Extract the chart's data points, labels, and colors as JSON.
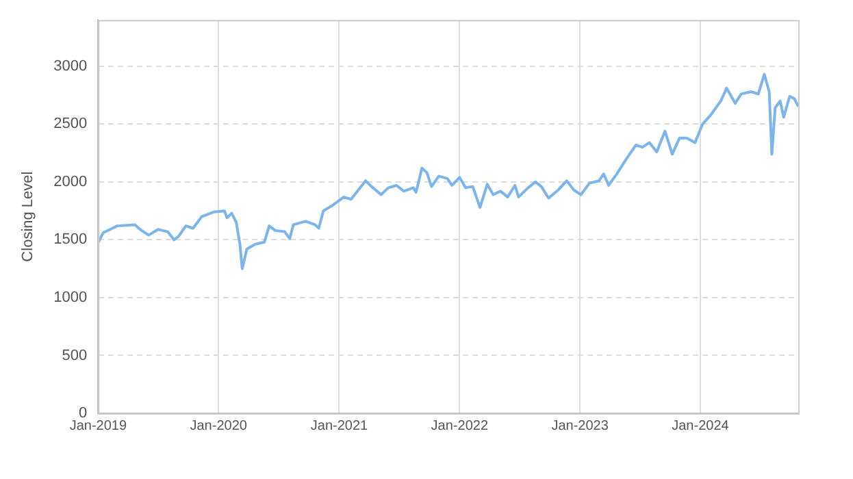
{
  "chart_data": {
    "type": "line",
    "ylabel": "Closing Level",
    "xlim": [
      "2019-01-01",
      "2024-10-24"
    ],
    "xticks": [
      {
        "value": "2019-01-01",
        "label": "Jan-2019"
      },
      {
        "value": "2020-01-01",
        "label": "Jan-2020"
      },
      {
        "value": "2021-01-01",
        "label": "Jan-2021"
      },
      {
        "value": "2022-01-01",
        "label": "Jan-2022"
      },
      {
        "value": "2023-01-01",
        "label": "Jan-2023"
      },
      {
        "value": "2024-01-01",
        "label": "Jan-2024"
      }
    ],
    "ylim": [
      0,
      3400
    ],
    "yticks": [
      0,
      500,
      1000,
      1500,
      2000,
      2500,
      3000
    ],
    "grid": true,
    "legend": false,
    "marker": "none",
    "line_style": "solid",
    "x": [
      "2019-01-02",
      "2019-01-16",
      "2019-02-28",
      "2019-04-23",
      "2019-05-08",
      "2019-06-03",
      "2019-07-02",
      "2019-07-31",
      "2019-08-19",
      "2019-09-02",
      "2019-09-24",
      "2019-10-16",
      "2019-11-11",
      "2019-12-17",
      "2020-01-19",
      "2020-01-27",
      "2020-02-10",
      "2020-02-24",
      "2020-03-06",
      "2020-03-13",
      "2020-03-27",
      "2020-04-20",
      "2020-05-19",
      "2020-06-03",
      "2020-06-21",
      "2020-07-20",
      "2020-08-04",
      "2020-08-15",
      "2020-09-21",
      "2020-10-20",
      "2020-10-31",
      "2020-11-14",
      "2020-12-13",
      "2021-01-15",
      "2021-02-06",
      "2021-02-28",
      "2021-03-22",
      "2021-04-09",
      "2021-05-08",
      "2021-05-30",
      "2021-06-24",
      "2021-07-16",
      "2021-08-14",
      "2021-08-22",
      "2021-09-09",
      "2021-09-24",
      "2021-10-08",
      "2021-10-30",
      "2021-11-25",
      "2021-12-09",
      "2022-01-01",
      "2022-01-19",
      "2022-02-10",
      "2022-03-04",
      "2022-03-26",
      "2022-04-13",
      "2022-05-05",
      "2022-05-27",
      "2022-06-18",
      "2022-06-29",
      "2022-07-28",
      "2022-08-19",
      "2022-09-06",
      "2022-09-28",
      "2022-10-27",
      "2022-11-22",
      "2022-12-14",
      "2023-01-04",
      "2023-01-30",
      "2023-02-28",
      "2023-03-14",
      "2023-03-29",
      "2023-04-23",
      "2023-05-22",
      "2023-06-20",
      "2023-07-09",
      "2023-07-31",
      "2023-08-22",
      "2023-09-16",
      "2023-10-08",
      "2023-10-30",
      "2023-11-21",
      "2023-12-16",
      "2024-01-08",
      "2024-02-02",
      "2024-03-03",
      "2024-03-21",
      "2024-04-16",
      "2024-05-04",
      "2024-06-03",
      "2024-06-25",
      "2024-07-13",
      "2024-07-28",
      "2024-08-05",
      "2024-08-15",
      "2024-08-30",
      "2024-09-10",
      "2024-09-28",
      "2024-10-12",
      "2024-10-23"
    ],
    "series": [
      {
        "color": "#7cb5ec",
        "values": [
          1480,
          1560,
          1620,
          1630,
          1590,
          1540,
          1590,
          1570,
          1500,
          1530,
          1620,
          1600,
          1700,
          1740,
          1750,
          1690,
          1730,
          1650,
          1460,
          1250,
          1420,
          1460,
          1480,
          1620,
          1580,
          1570,
          1510,
          1630,
          1660,
          1630,
          1600,
          1750,
          1800,
          1870,
          1850,
          1930,
          2010,
          1960,
          1890,
          1950,
          1970,
          1920,
          1950,
          1910,
          2120,
          2080,
          1960,
          2050,
          2030,
          1970,
          2040,
          1950,
          1960,
          1780,
          1980,
          1890,
          1920,
          1870,
          1970,
          1870,
          1950,
          2000,
          1960,
          1860,
          1930,
          2010,
          1930,
          1890,
          1990,
          2010,
          2070,
          1970,
          2070,
          2200,
          2320,
          2300,
          2340,
          2260,
          2440,
          2240,
          2380,
          2380,
          2340,
          2500,
          2580,
          2700,
          2810,
          2680,
          2760,
          2780,
          2760,
          2930,
          2780,
          2240,
          2640,
          2700,
          2560,
          2740,
          2720,
          2660
        ]
      }
    ]
  }
}
